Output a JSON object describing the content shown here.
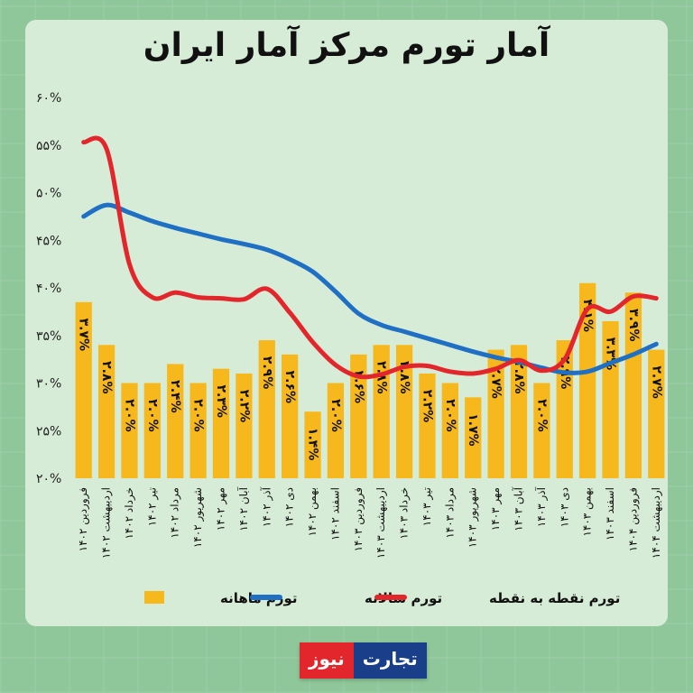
{
  "title": "آمار تورم مرکز آمار ایران",
  "brand": {
    "part1": "تجارت",
    "part2": "نیوز"
  },
  "chart_data": {
    "type": "bar",
    "ylim": [
      20,
      60
    ],
    "yticks": [
      "۲۰%",
      "۲۵%",
      "۳۰%",
      "۳۵%",
      "۴۰%",
      "۴۵%",
      "۵۰%",
      "۵۵%",
      "۶۰%"
    ],
    "categories": [
      "فروردین ۱۴۰۲",
      "اردیبهشت ۱۴۰۲",
      "خرداد ۱۴۰۲",
      "تیر ۱۴۰۲",
      "مرداد ۱۴۰۲",
      "شهریور ۱۴۰۲",
      "مهر ۱۴۰۲",
      "آبان ۱۴۰۲",
      "آذر ۱۴۰۲",
      "دی ۱۴۰۲",
      "بهمن ۱۴۰۲",
      "اسفند ۱۴۰۲",
      "فروردین ۱۴۰۳",
      "اردیبهشت ۱۴۰۳",
      "خرداد ۱۴۰۳",
      "تیر ۱۴۰۳",
      "مرداد ۱۴۰۳",
      "شهریور ۱۴۰۳",
      "مهر ۱۴۰۳",
      "آبان ۱۴۰۳",
      "آذر ۱۴۰۳",
      "دی ۱۴۰۳",
      "بهمن ۱۴۰۳",
      "اسفند ۱۴۰۳",
      "فروردین ۱۴۰۴",
      "اردیبهشت ۱۴۰۴"
    ],
    "series": [
      {
        "name": "تورم ماهانه",
        "type": "bar",
        "color": "#f7b81e",
        "values": [
          3.7,
          2.8,
          2.0,
          2.0,
          2.4,
          2.0,
          2.3,
          2.2,
          2.9,
          2.6,
          1.4,
          2.0,
          2.6,
          2.8,
          2.8,
          2.2,
          2.0,
          1.7,
          2.7,
          2.8,
          2.0,
          2.9,
          4.1,
          3.3,
          3.9,
          2.7
        ],
        "labels": [
          "۳.۷%",
          "۲.۸%",
          "۲.۰%",
          "۲.۰%",
          "۲.۴%",
          "۲.۰%",
          "۲.۳%",
          "۲.۲%",
          "۲.۹%",
          "۲.۶%",
          "۱.۴%",
          "۲.۰%",
          "۲.۶%",
          "۲.۸%",
          "۲.۸%",
          "۲.۲%",
          "۲.۰%",
          "۱.۷%",
          "۲.۷%",
          "۲.۸%",
          "۲.۰%",
          "۲.۹%",
          "۴.۱%",
          "۳.۳%",
          "۳.۹%",
          "۲.۷%"
        ]
      },
      {
        "name": "تورم سالانه",
        "type": "line",
        "color": "#1f6fc4",
        "values": [
          47.5,
          48.7,
          47.9,
          47.0,
          46.3,
          45.7,
          45.1,
          44.6,
          44.0,
          43.0,
          41.7,
          39.6,
          37.3,
          36.1,
          35.4,
          34.7,
          34.0,
          33.3,
          32.7,
          32.2,
          31.6,
          31.1,
          31.2,
          32.1,
          33.0,
          34.1
        ]
      },
      {
        "name": "تورم نقطه به نقطه",
        "type": "line",
        "color": "#e3262b",
        "values": [
          55.3,
          54.6,
          42.5,
          39.0,
          39.5,
          39.0,
          38.9,
          38.8,
          39.9,
          37.4,
          34.3,
          31.9,
          30.7,
          30.9,
          31.7,
          31.8,
          31.2,
          31.0,
          31.5,
          32.4,
          31.3,
          32.5,
          37.8,
          37.5,
          39.1,
          38.9
        ]
      }
    ],
    "legend": [
      {
        "label": "تورم ماهانه",
        "color": "#f7b81e",
        "kind": "bar"
      },
      {
        "label": "تورم سالانه",
        "color": "#1f6fc4",
        "kind": "line"
      },
      {
        "label": "تورم نقطه به نقطه",
        "color": "#e3262b",
        "kind": "line"
      }
    ],
    "legend_position": "bottom",
    "grid": false
  }
}
